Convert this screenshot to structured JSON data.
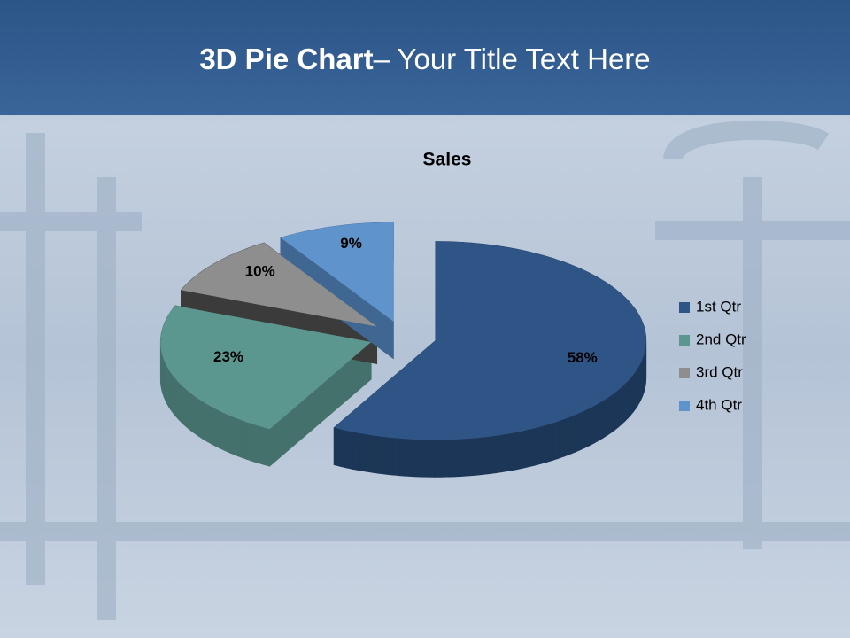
{
  "slide_title": [
    "3D Pie Chart",
    "– Your Title Text Here"
  ],
  "chart_data": {
    "type": "pie",
    "title": "Sales",
    "categories": [
      "1st Qtr",
      "2nd Qtr",
      "3rd Qtr",
      "4th Qtr"
    ],
    "values": [
      58,
      23,
      10,
      9
    ],
    "value_labels": [
      "58%",
      "23%",
      "10%",
      "9%"
    ],
    "colors": [
      "#2f5486",
      "#5b968f",
      "#8e8e8e",
      "#5f93cc"
    ],
    "side_colors": [
      "#1c3657",
      "#44716b",
      "#3b3b3b",
      "#3f6791"
    ],
    "legend": "right"
  }
}
